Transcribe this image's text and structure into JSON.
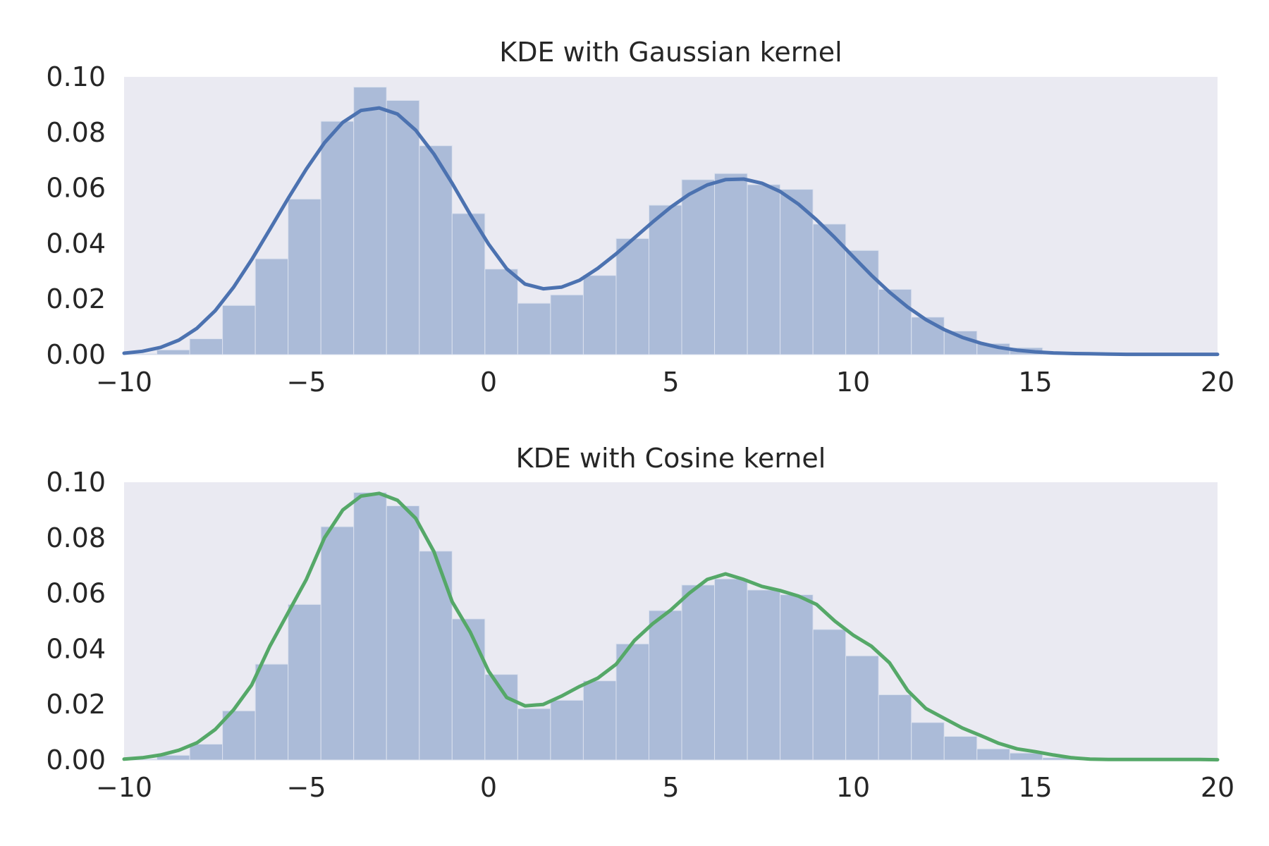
{
  "chart_data": [
    {
      "type": "bar",
      "title": "KDE with Gaussian kernel",
      "xlabel": "",
      "ylabel": "",
      "xlim": [
        -10,
        20
      ],
      "ylim": [
        0,
        0.1
      ],
      "x_ticks": [
        -10,
        -5,
        0,
        5,
        10,
        15,
        20
      ],
      "x_tick_labels": [
        "−10",
        "−5",
        "0",
        "5",
        "10",
        "15",
        "20"
      ],
      "y_ticks": [
        0,
        0.02,
        0.04,
        0.06,
        0.08,
        0.1
      ],
      "y_tick_labels": [
        "0.00",
        "0.02",
        "0.04",
        "0.06",
        "0.08",
        "0.10"
      ],
      "grid": false,
      "background_color": "#eaeaf2",
      "histogram": {
        "color": "#abbbd8",
        "bin_start": -10,
        "bin_width": 0.9,
        "values": [
          0.0003,
          0.0017,
          0.0057,
          0.0177,
          0.0345,
          0.056,
          0.084,
          0.0963,
          0.0915,
          0.0752,
          0.0508,
          0.0308,
          0.0185,
          0.0215,
          0.0285,
          0.0418,
          0.0538,
          0.063,
          0.0652,
          0.0612,
          0.0595,
          0.047,
          0.0375,
          0.0235,
          0.0135,
          0.0085,
          0.004,
          0.0025,
          0.0008,
          0.0002
        ]
      },
      "kde": {
        "kernel": "Gaussian",
        "color": "#4c72b0",
        "x": [
          -10,
          -9.5,
          -9,
          -8.5,
          -8,
          -7.5,
          -7,
          -6.5,
          -6,
          -5.5,
          -5,
          -4.5,
          -4,
          -3.5,
          -3,
          -2.5,
          -2,
          -1.5,
          -1,
          -0.5,
          0,
          0.5,
          1,
          1.5,
          2,
          2.5,
          3,
          3.5,
          4,
          4.5,
          5,
          5.5,
          6,
          6.5,
          7,
          7.5,
          8,
          8.5,
          9,
          9.5,
          10,
          10.5,
          11,
          11.5,
          12,
          12.5,
          13,
          13.5,
          14,
          14.5,
          15,
          15.5,
          16,
          16.5,
          17,
          17.5,
          18,
          18.5,
          19,
          19.5,
          20
        ],
        "y": [
          0.0005,
          0.0012,
          0.0026,
          0.0052,
          0.0095,
          0.0158,
          0.0242,
          0.0342,
          0.0451,
          0.0562,
          0.0668,
          0.0763,
          0.0836,
          0.0879,
          0.0888,
          0.0866,
          0.0808,
          0.0722,
          0.0617,
          0.0504,
          0.0398,
          0.0309,
          0.0254,
          0.0237,
          0.0243,
          0.0268,
          0.0311,
          0.0363,
          0.042,
          0.0477,
          0.0531,
          0.0577,
          0.0611,
          0.063,
          0.0632,
          0.0617,
          0.0587,
          0.0542,
          0.0485,
          0.0421,
          0.0353,
          0.0286,
          0.0225,
          0.0171,
          0.0126,
          0.009,
          0.0062,
          0.0041,
          0.0026,
          0.0016,
          0.001,
          0.0006,
          0.0004,
          0.0003,
          0.0002,
          0.0001,
          0.0001,
          0.0001,
          0.0001,
          0.0001,
          0.0001
        ]
      }
    },
    {
      "type": "bar",
      "title": "KDE with Cosine kernel",
      "xlabel": "",
      "ylabel": "",
      "xlim": [
        -10,
        20
      ],
      "ylim": [
        0,
        0.1
      ],
      "x_ticks": [
        -10,
        -5,
        0,
        5,
        10,
        15,
        20
      ],
      "x_tick_labels": [
        "−10",
        "−5",
        "0",
        "5",
        "10",
        "15",
        "20"
      ],
      "y_ticks": [
        0,
        0.02,
        0.04,
        0.06,
        0.08,
        0.1
      ],
      "y_tick_labels": [
        "0.00",
        "0.02",
        "0.04",
        "0.06",
        "0.08",
        "0.10"
      ],
      "grid": false,
      "background_color": "#eaeaf2",
      "histogram": {
        "color": "#abbbd8",
        "bin_start": -10,
        "bin_width": 0.9,
        "values": [
          0.0003,
          0.0017,
          0.0057,
          0.0177,
          0.0345,
          0.056,
          0.084,
          0.0963,
          0.0915,
          0.0752,
          0.0508,
          0.0308,
          0.0185,
          0.0215,
          0.0285,
          0.0418,
          0.0538,
          0.063,
          0.0652,
          0.0612,
          0.0595,
          0.047,
          0.0375,
          0.0235,
          0.0135,
          0.0085,
          0.004,
          0.0025,
          0.0008,
          0.0002
        ]
      },
      "kde": {
        "kernel": "Cosine",
        "color": "#55a868",
        "x": [
          -10,
          -9.5,
          -9,
          -8.5,
          -8,
          -7.5,
          -7,
          -6.5,
          -6,
          -5.5,
          -5,
          -4.5,
          -4,
          -3.5,
          -3,
          -2.5,
          -2,
          -1.5,
          -1,
          -0.5,
          0,
          0.5,
          1,
          1.5,
          2,
          2.5,
          3,
          3.5,
          4,
          4.5,
          5,
          5.5,
          6,
          6.5,
          7,
          7.5,
          8,
          8.5,
          9,
          9.5,
          10,
          10.5,
          11,
          11.5,
          12,
          12.5,
          13,
          13.5,
          14,
          14.5,
          15,
          15.5,
          16,
          16.5,
          17,
          17.5,
          18,
          18.5,
          19,
          19.5,
          20
        ],
        "y": [
          0.0003,
          0.0008,
          0.0018,
          0.0035,
          0.0062,
          0.011,
          0.018,
          0.027,
          0.041,
          0.053,
          0.065,
          0.08,
          0.09,
          0.095,
          0.096,
          0.0935,
          0.087,
          0.075,
          0.057,
          0.046,
          0.032,
          0.0225,
          0.0195,
          0.02,
          0.023,
          0.0265,
          0.0295,
          0.0345,
          0.043,
          0.049,
          0.054,
          0.06,
          0.065,
          0.067,
          0.065,
          0.0625,
          0.061,
          0.059,
          0.056,
          0.05,
          0.045,
          0.041,
          0.035,
          0.025,
          0.0185,
          0.015,
          0.0115,
          0.0088,
          0.006,
          0.004,
          0.003,
          0.0018,
          0.0008,
          0.0003,
          0.0002,
          0.0002,
          0.0002,
          0.0002,
          0.0002,
          0.0002,
          0.0001
        ]
      }
    }
  ]
}
